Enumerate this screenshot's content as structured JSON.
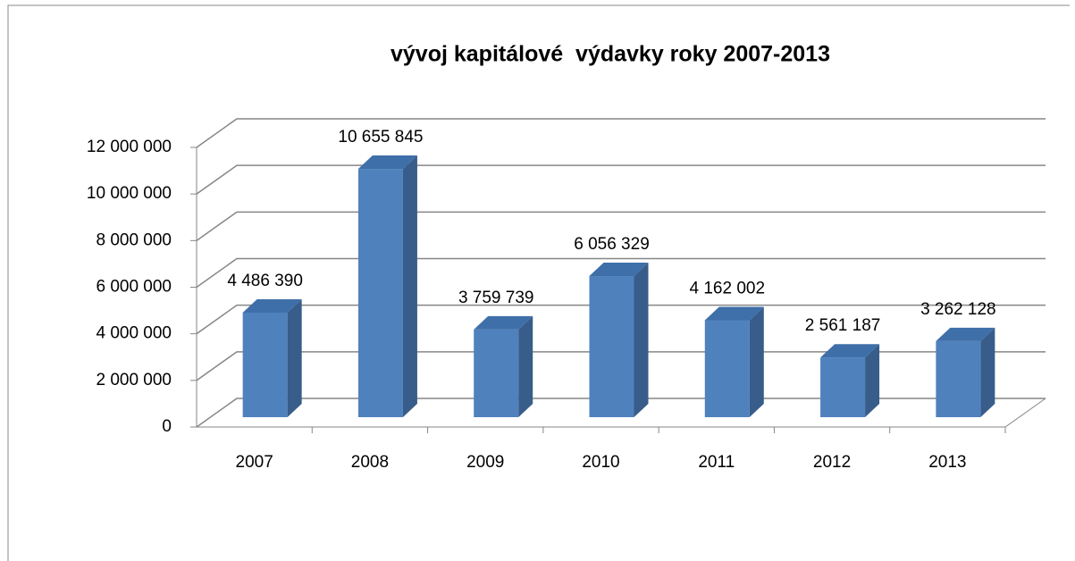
{
  "chart_data": {
    "type": "bar3d",
    "title": "vývoj kapitálové  výdavky roky 2007-2013",
    "categories": [
      "2007",
      "2008",
      "2009",
      "2010",
      "2011",
      "2012",
      "2013"
    ],
    "values": [
      4486390,
      10655845,
      3759739,
      6056329,
      4162002,
      2561187,
      3262128
    ],
    "value_labels": [
      "4 486 390",
      "10 655 845",
      "3 759 739",
      "6 056 329",
      "4 162 002",
      "2 561 187",
      "3 262 128"
    ],
    "color": "#4f81bd",
    "ylim": [
      0,
      12000000
    ],
    "yticks": [
      0,
      {
        "value": 2000000,
        "label": "2 000 000"
      },
      {
        "value": 4000000,
        "label": "4 000 000"
      },
      {
        "value": 6000000,
        "label": "6 000 000"
      },
      {
        "value": 8000000,
        "label": "8 000 000"
      },
      {
        "value": 10000000,
        "label": "10 000 000"
      },
      {
        "value": 12000000,
        "label": "12 000 000"
      }
    ],
    "grid": true
  }
}
